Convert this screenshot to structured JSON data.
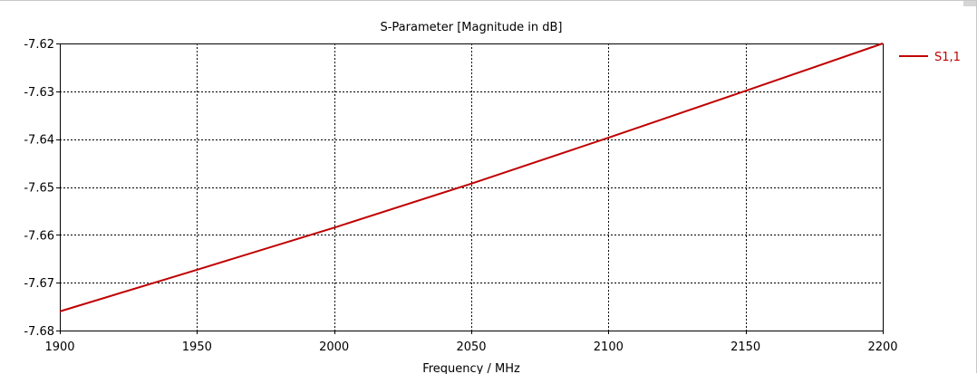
{
  "chart_data": {
    "type": "line",
    "title": "S-Parameter [Magnitude in dB]",
    "xlabel": "Frequency / MHz",
    "ylabel": "",
    "xlim": [
      1900,
      2200
    ],
    "ylim": [
      -7.68,
      -7.62
    ],
    "xticks": [
      1900,
      1950,
      2000,
      2050,
      2100,
      2150,
      2200
    ],
    "xtick_labels": [
      "1900",
      "1950",
      "2000",
      "2050",
      "2100",
      "2150",
      "2200"
    ],
    "yticks": [
      -7.62,
      -7.63,
      -7.64,
      -7.65,
      -7.66,
      -7.67,
      -7.68
    ],
    "ytick_labels": [
      "-7.62",
      "-7.63",
      "-7.64",
      "-7.65",
      "-7.66",
      "-7.67",
      "-7.68"
    ],
    "grid": true,
    "grid_style": "dotted",
    "legend_position": "right",
    "series": [
      {
        "name": "S1,1",
        "color": "#c00000",
        "x": [
          1900,
          1950,
          2000,
          2050,
          2100,
          2150,
          2200
        ],
        "y": [
          -7.676,
          -7.6673,
          -7.6585,
          -7.6493,
          -7.6397,
          -7.6299,
          -7.62
        ]
      }
    ]
  }
}
